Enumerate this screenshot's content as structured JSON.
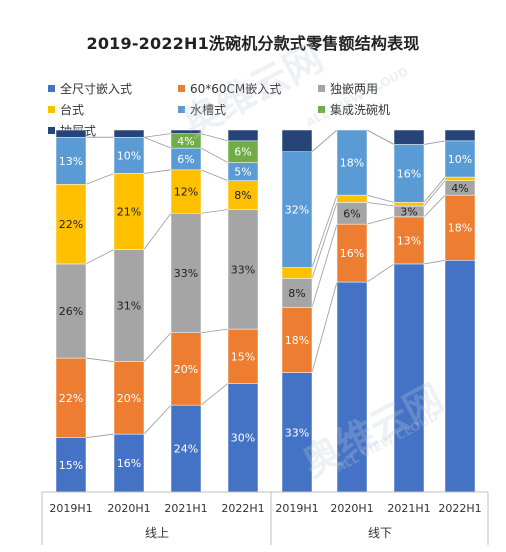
{
  "title": "2019-2022H1洗碗机分款式零售额结构表现",
  "watermark_text": "奥维云网",
  "watermark_sub": "ALL VIEW CLOUD",
  "colors": {
    "full_embedded": "#4472C4",
    "size_60": "#ED7D31",
    "dual_use": "#A5A5A5",
    "countertop": "#FFC000",
    "sink": "#5B9BD5",
    "integrated": "#70AD47",
    "drawer": "#264478"
  },
  "chart_data": {
    "type": "bar",
    "stacked": true,
    "percent": true,
    "groups": [
      "线上",
      "线下"
    ],
    "categories": [
      "2019H1",
      "2020H1",
      "2021H1",
      "2022H1",
      "2019H1",
      "2020H1",
      "2021H1",
      "2022H1"
    ],
    "ylim": [
      0,
      100
    ],
    "legend_position": "top",
    "series": [
      {
        "name": "全尺寸嵌入式",
        "color_key": "full_embedded",
        "values": [
          15,
          16,
          24,
          30,
          33,
          58,
          63,
          64
        ],
        "labels": [
          "15%",
          "16%",
          "24%",
          "30%",
          "33%",
          "",
          "",
          ""
        ]
      },
      {
        "name": "60*60CM嵌入式",
        "color_key": "size_60",
        "values": [
          22,
          20,
          20,
          15,
          18,
          16,
          13,
          18
        ],
        "labels": [
          "22%",
          "20%",
          "20%",
          "15%",
          "18%",
          "16%",
          "13%",
          "18%"
        ]
      },
      {
        "name": "独嵌两用",
        "color_key": "dual_use",
        "values": [
          26,
          31,
          33,
          33,
          8,
          6,
          3,
          4
        ],
        "labels": [
          "26%",
          "31%",
          "33%",
          "33%",
          "8%",
          "6%",
          "3%",
          "4%"
        ]
      },
      {
        "name": "台式",
        "color_key": "countertop",
        "values": [
          22,
          21,
          12,
          8,
          3,
          2,
          1,
          1
        ],
        "labels": [
          "22%",
          "21%",
          "12%",
          "8%",
          "",
          "",
          "",
          ""
        ]
      },
      {
        "name": "水槽式",
        "color_key": "sink",
        "values": [
          13,
          10,
          6,
          5,
          32,
          18,
          16,
          10
        ],
        "labels": [
          "13%",
          "10%",
          "6%",
          "5%",
          "32%",
          "18%",
          "16%",
          "10%"
        ]
      },
      {
        "name": "集成洗碗机",
        "color_key": "integrated",
        "values": [
          0,
          0,
          4,
          6,
          0,
          0,
          0,
          0
        ],
        "labels": [
          "",
          "",
          "4%",
          "6%",
          "",
          "",
          "",
          ""
        ]
      },
      {
        "name": "抽屉式",
        "color_key": "drawer",
        "values": [
          2,
          2,
          1,
          3,
          6,
          0,
          4,
          3
        ],
        "labels": [
          "",
          "",
          "",
          "",
          "",
          "",
          "",
          ""
        ]
      }
    ]
  }
}
